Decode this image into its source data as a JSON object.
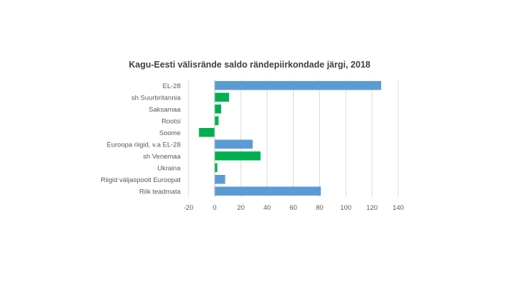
{
  "chart_data": {
    "type": "bar",
    "orientation": "horizontal",
    "title": "Kagu-Eesti välisrände saldo rändepiirkondade järgi, 2018",
    "xlabel": "",
    "ylabel": "",
    "xlim": [
      -20,
      140
    ],
    "x_ticks": [
      -20,
      0,
      20,
      40,
      60,
      80,
      100,
      120,
      140
    ],
    "grid": true,
    "legend": "none",
    "categories": [
      "EL-28",
      "sh Suurbritannia",
      "Saksamaa",
      "Rootsi",
      "Soome",
      "Euroopa riigid, v.a EL-28",
      "sh Venemaa",
      "Ukraina",
      "Riigid väljaspoolt Euroopat",
      "Riik teadmata"
    ],
    "values": [
      127,
      11,
      5,
      3,
      -12,
      29,
      35,
      2,
      8,
      81
    ],
    "bar_colors": [
      "#5b9bd5",
      "#00b050",
      "#00b050",
      "#00b050",
      "#00b050",
      "#5b9bd5",
      "#00b050",
      "#00b050",
      "#5b9bd5",
      "#5b9bd5"
    ]
  }
}
